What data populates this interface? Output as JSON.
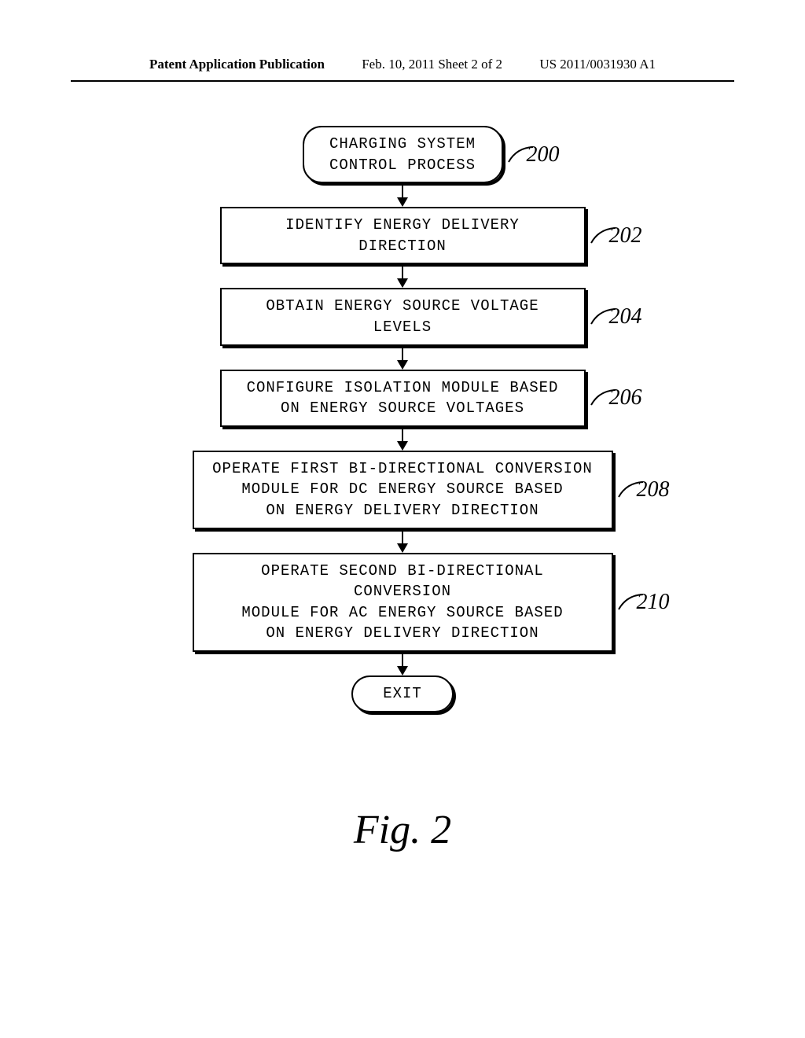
{
  "header": {
    "left": "Patent Application Publication",
    "center": "Feb. 10, 2011  Sheet 2 of 2",
    "right": "US 2011/0031930 A1"
  },
  "flowchart": {
    "nodes": [
      {
        "id": "start",
        "type": "terminator",
        "text": "CHARGING SYSTEM\nCONTROL PROCESS",
        "label": "200",
        "width_class": "w-terminator-start"
      },
      {
        "id": "step1",
        "type": "process",
        "text": "IDENTIFY ENERGY DELIVERY DIRECTION",
        "label": "202",
        "width_class": "w-process-small"
      },
      {
        "id": "step2",
        "type": "process",
        "text": "OBTAIN ENERGY SOURCE VOLTAGE LEVELS",
        "label": "204",
        "width_class": "w-process-small"
      },
      {
        "id": "step3",
        "type": "process",
        "text": "CONFIGURE ISOLATION MODULE BASED\nON ENERGY SOURCE VOLTAGES",
        "label": "206",
        "width_class": "w-process-medium"
      },
      {
        "id": "step4",
        "type": "process",
        "text": "OPERATE FIRST BI-DIRECTIONAL CONVERSION\nMODULE FOR DC ENERGY SOURCE BASED\nON ENERGY DELIVERY DIRECTION",
        "label": "208",
        "width_class": "w-process-large"
      },
      {
        "id": "step5",
        "type": "process",
        "text": "OPERATE SECOND BI-DIRECTIONAL CONVERSION\nMODULE FOR AC ENERGY SOURCE BASED\nON ENERGY DELIVERY DIRECTION",
        "label": "210",
        "width_class": "w-process-large"
      },
      {
        "id": "exit",
        "type": "terminator",
        "text": "EXIT",
        "label": "",
        "width_class": "w-exit"
      }
    ],
    "figure_label": "Fig. 2",
    "colors": {
      "background": "#ffffff",
      "border": "#000000",
      "text": "#000000"
    },
    "fonts": {
      "box_font": "Courier New",
      "box_fontsize": 19,
      "label_font": "Brush Script MT",
      "label_fontsize": 28,
      "figure_fontsize": 52,
      "header_font": "Georgia",
      "header_fontsize": 17
    }
  }
}
